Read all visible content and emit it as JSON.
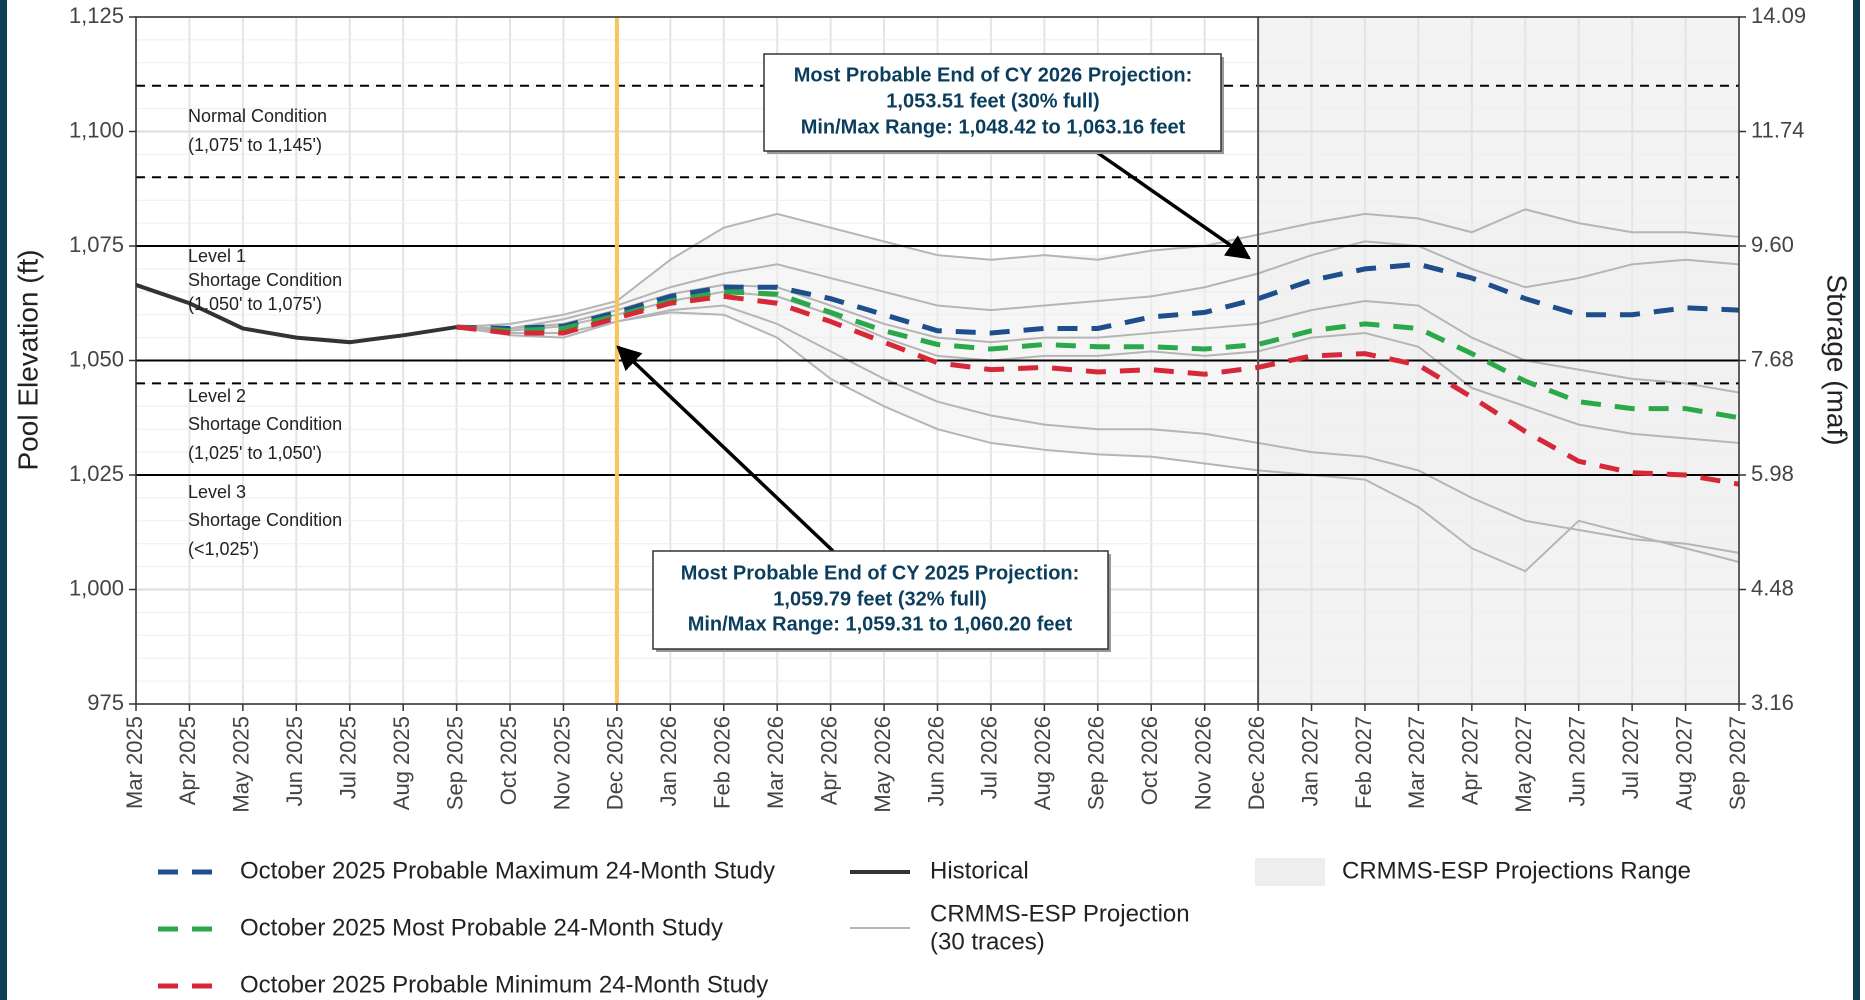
{
  "chart_data": {
    "type": "line",
    "y_title": "Pool Elevation (ft)",
    "y2_title": "Storage (maf)",
    "categories": [
      "Mar 2025",
      "Apr 2025",
      "May 2025",
      "Jun 2025",
      "Jul 2025",
      "Aug 2025",
      "Sep 2025",
      "Oct 2025",
      "Nov 2025",
      "Dec 2025",
      "Jan 2026",
      "Feb 2026",
      "Mar 2026",
      "Apr 2026",
      "May 2026",
      "Jun 2026",
      "Jul 2026",
      "Aug 2026",
      "Sep 2026",
      "Oct 2026",
      "Nov 2026",
      "Dec 2026",
      "Jan 2027",
      "Feb 2027",
      "Mar 2027",
      "Apr 2027",
      "May 2027",
      "Jun 2027",
      "Jul 2027",
      "Aug 2027",
      "Sep 2027"
    ],
    "ylim": [
      975,
      1125
    ],
    "yticks": [
      975,
      {
        "value": 1000,
        "label": "1,000"
      },
      {
        "value": 1025,
        "label": "1,025"
      },
      {
        "value": 1050,
        "label": "1,050"
      },
      {
        "value": 1075,
        "label": "1,075"
      },
      {
        "value": 1100,
        "label": "1,100"
      },
      {
        "value": 1125,
        "label": "1,125"
      }
    ],
    "y2lim": [
      3.16,
      14.09
    ],
    "y2ticks": [
      3.16,
      4.48,
      5.98,
      7.68,
      {
        "value": 9.6,
        "label": "9.60"
      },
      11.74,
      14.09
    ],
    "grid": true,
    "reference_lines": [
      {
        "value": 1110,
        "style": "dashed"
      },
      {
        "value": 1090,
        "style": "dashed"
      },
      {
        "value": 1075,
        "style": "solid"
      },
      {
        "value": 1050,
        "style": "solid"
      },
      {
        "value": 1045,
        "style": "dashed"
      },
      {
        "value": 1025,
        "style": "solid"
      }
    ],
    "zones": [
      {
        "lines": [
          "Normal Condition",
          "(1,075' to 1,145')"
        ]
      },
      {
        "lines": [
          "Level 1",
          "Shortage Condition",
          "(1,050' to 1,075')"
        ]
      },
      {
        "lines": [
          "Level 2",
          "Shortage Condition",
          "(1,025' to 1,050')"
        ]
      },
      {
        "lines": [
          "Level 3",
          "Shortage Condition",
          "(<1,025')"
        ]
      }
    ],
    "vlines": [
      {
        "x": "Dec 2025",
        "color": "#f7c55a"
      },
      {
        "x": "Dec 2026",
        "color": "#555555"
      }
    ],
    "range": {
      "name": "CRMMS-ESP Projections Range",
      "color": "#eeeeee",
      "upper": [
        null,
        null,
        null,
        null,
        null,
        null,
        1057.3,
        1058,
        1060,
        1063,
        1072,
        1079,
        1082,
        1079,
        1076,
        1073,
        1072,
        1073,
        1073,
        1074,
        1076,
        1077.5,
        1081,
        1083,
        1083,
        1080,
        1083.5,
        1080,
        1078.5,
        1078.5,
        1077
      ],
      "lower": [
        null,
        null,
        null,
        null,
        null,
        null,
        1057.3,
        1055.5,
        1055,
        1058.5,
        1060.5,
        1060,
        1055,
        1046,
        1040,
        1035,
        1032,
        1030.5,
        1029.5,
        1029,
        1027.5,
        1026,
        1025,
        1024,
        1018,
        1009,
        1004,
        1015,
        1012,
        1009,
        1006
      ]
    },
    "projection_traces": {
      "legend": [
        "CRMMS-ESP Projection",
        "(30 traces)"
      ],
      "color": "#b5b5b5",
      "series": [
        [
          null,
          null,
          null,
          null,
          null,
          null,
          1057.3,
          1058,
          1060,
          1063,
          1072,
          1079,
          1082,
          1079,
          1076,
          1073,
          1072,
          1073,
          1072,
          1074,
          1075,
          1077.5,
          1080,
          1082,
          1081,
          1078,
          1083,
          1080,
          1078,
          1078,
          1077
        ],
        [
          null,
          null,
          null,
          null,
          null,
          null,
          1057.3,
          1057,
          1059,
          1062,
          1066,
          1069,
          1071,
          1068,
          1065,
          1062,
          1061,
          1062,
          1063,
          1064,
          1066,
          1069,
          1073,
          1076,
          1075,
          1070,
          1066,
          1068,
          1071,
          1072,
          1071
        ],
        [
          null,
          null,
          null,
          null,
          null,
          null,
          1057.3,
          1056.5,
          1057.5,
          1060,
          1063,
          1065,
          1064,
          1060,
          1055,
          1051,
          1050,
          1051,
          1051,
          1052,
          1051,
          1052,
          1055,
          1056,
          1053,
          1044,
          1040,
          1036,
          1034,
          1033,
          1032
        ],
        [
          null,
          null,
          null,
          null,
          null,
          null,
          1057.3,
          1056,
          1056,
          1058.5,
          1061,
          1062,
          1058,
          1052,
          1046,
          1041,
          1038,
          1036,
          1035,
          1035,
          1034,
          1032,
          1030,
          1029,
          1026,
          1020,
          1015,
          1013,
          1011,
          1010,
          1008
        ],
        [
          null,
          null,
          null,
          null,
          null,
          null,
          1057.3,
          1055.5,
          1055,
          1058.5,
          1060.5,
          1060,
          1055,
          1046,
          1040,
          1035,
          1032,
          1030.5,
          1029.5,
          1029,
          1027.5,
          1026,
          1025,
          1024,
          1018,
          1009,
          1004,
          1015,
          1012,
          1009,
          1006
        ],
        [
          null,
          null,
          null,
          null,
          null,
          null,
          1057.3,
          1057,
          1058,
          1061,
          1064.5,
          1066.5,
          1066,
          1062,
          1058,
          1055,
          1054,
          1055,
          1055,
          1056,
          1057,
          1058,
          1061,
          1063,
          1062,
          1055,
          1050,
          1048,
          1046,
          1045,
          1043
        ]
      ]
    },
    "series": [
      {
        "name": "October 2025 Probable Maximum 24-Month Study",
        "color": "#1f4e8c",
        "style": "dashed",
        "values": [
          null,
          null,
          null,
          null,
          null,
          null,
          1057.3,
          1057,
          1057.5,
          1060.5,
          1064,
          1066,
          1066,
          1063.5,
          1060,
          1056.5,
          1056,
          1057,
          1057,
          1059.5,
          1060.5,
          1063.5,
          1067.5,
          1070,
          1071,
          1068,
          1063.5,
          1060,
          1060,
          1061.5,
          1061
        ]
      },
      {
        "name": "October 2025 Most Probable 24-Month Study",
        "color": "#2aa84a",
        "style": "dashed",
        "values": [
          null,
          null,
          null,
          null,
          null,
          null,
          1057.3,
          1056.5,
          1057,
          1059.8,
          1063,
          1065,
          1064.5,
          1060.5,
          1056.5,
          1053.5,
          1052.5,
          1053.5,
          1053,
          1053,
          1052.5,
          1053.5,
          1056.5,
          1058,
          1057,
          1051.5,
          1045.5,
          1041,
          1039.5,
          1039.5,
          1037.5
        ]
      },
      {
        "name": "October 2025 Probable Minimum 24-Month Study",
        "color": "#d62838",
        "style": "dashed",
        "values": [
          null,
          null,
          null,
          null,
          null,
          null,
          1057.3,
          1056,
          1056,
          1059.3,
          1062.5,
          1064,
          1062.5,
          1058.5,
          1054,
          1049.5,
          1048,
          1048.5,
          1047.5,
          1048,
          1047,
          1048.5,
          1051,
          1051.5,
          1049,
          1042,
          1034.5,
          1028,
          1025.5,
          1025,
          1023
        ]
      },
      {
        "name": "Historical",
        "color": "#333333",
        "style": "solid",
        "values": [
          1066.5,
          1062.5,
          1057,
          1055,
          1054,
          1055.5,
          1057.3,
          null,
          null,
          null,
          null,
          null,
          null,
          null,
          null,
          null,
          null,
          null,
          null,
          null,
          null,
          null,
          null,
          null,
          null,
          null,
          null,
          null,
          null,
          null,
          null
        ]
      }
    ],
    "annotations": [
      {
        "lines": [
          "Most Probable End of CY 2026 Projection:",
          "1,053.51 feet (30% full)",
          "Min/Max Range: 1,048.42 to 1,063.16 feet"
        ]
      },
      {
        "lines": [
          "Most Probable End of CY 2025 Projection:",
          "1,059.79 feet (32% full)",
          "Min/Max Range: 1,059.31 to 1,060.20 feet"
        ]
      }
    ]
  }
}
